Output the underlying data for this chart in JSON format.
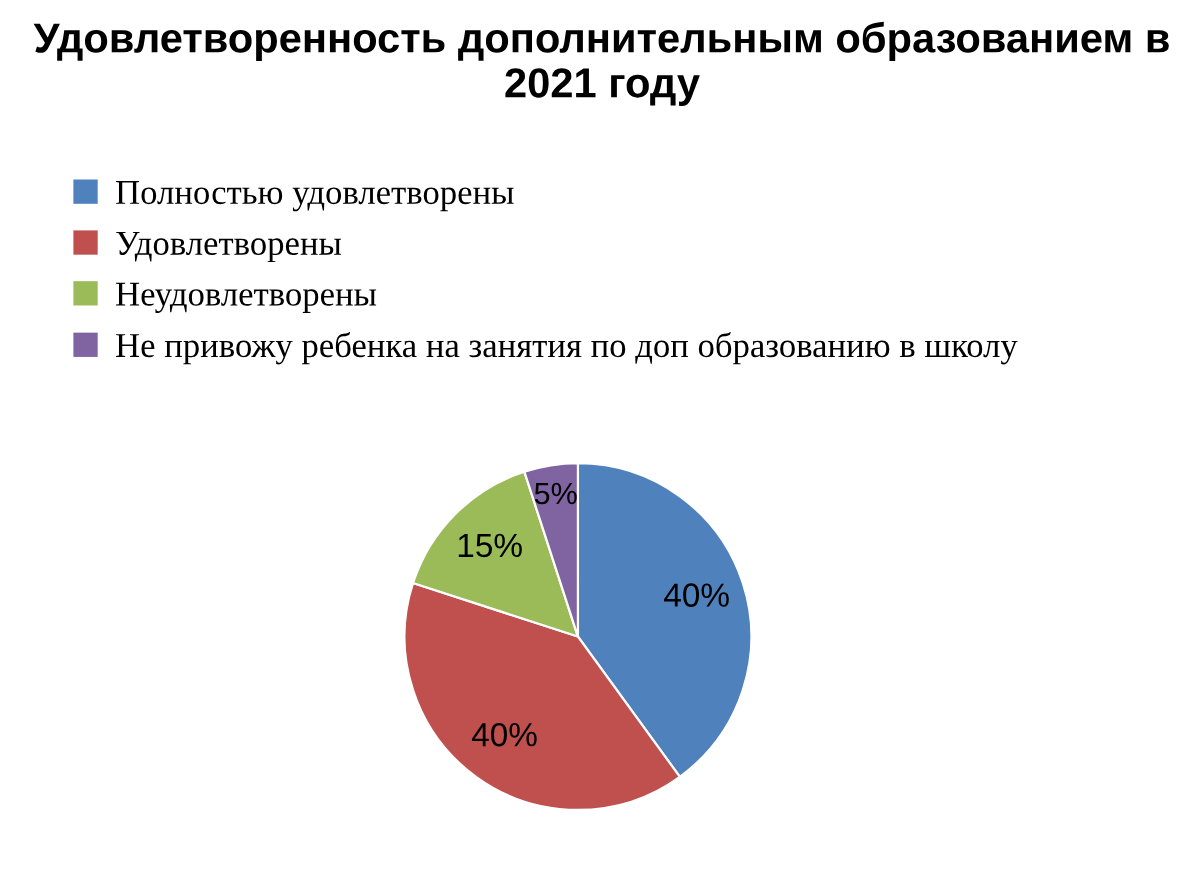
{
  "chart_data": {
    "type": "pie",
    "title": "Удовлетворенность дополнительным образованием в 2021 году",
    "categories": [
      "Полностью удовлетворены",
      "Удовлетворены",
      "Неудовлетворены",
      "Не привожу ребенка на занятия по доп образованию в школу"
    ],
    "values": [
      40,
      40,
      15,
      5
    ],
    "colors": [
      "#4f81bd",
      "#c0504d",
      "#9bbb59",
      "#8064a2"
    ],
    "value_labels": [
      "40%",
      "40%",
      "15%",
      "5%"
    ],
    "legend": "top"
  }
}
